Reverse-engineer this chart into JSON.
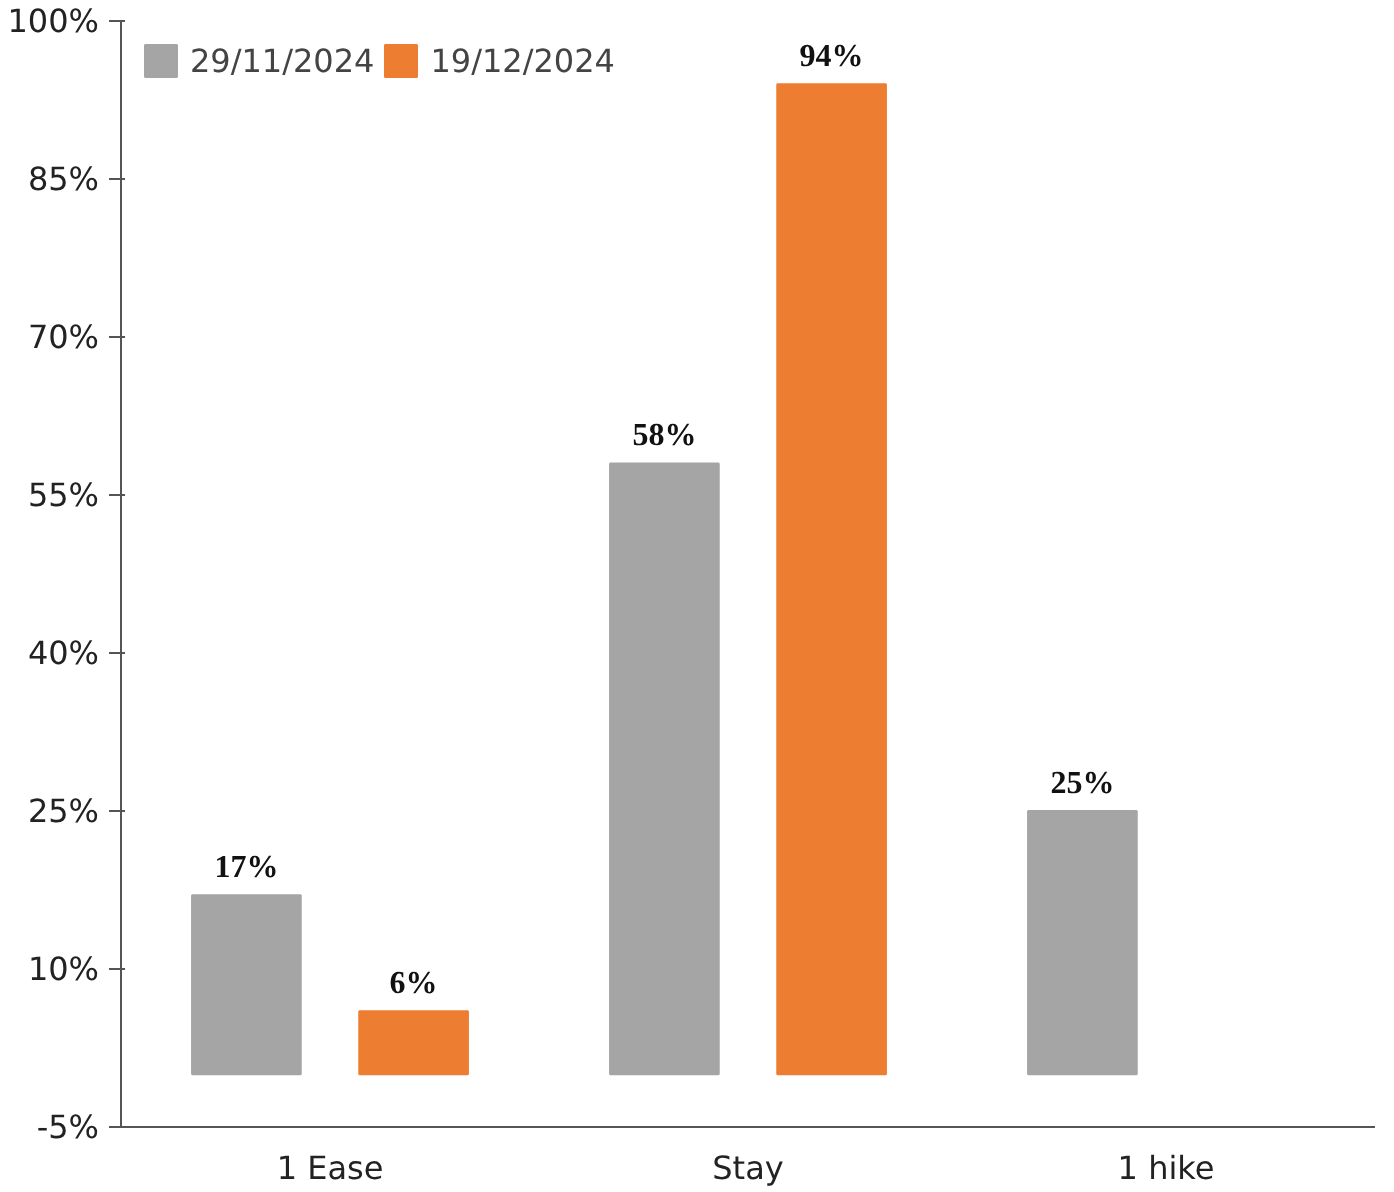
{
  "chart_data": {
    "type": "bar",
    "categories": [
      "1 Ease",
      "Stay",
      "1 hike"
    ],
    "series": [
      {
        "name": "29/11/2024",
        "color": "#a5a5a5",
        "values": [
          17,
          58,
          25
        ],
        "value_labels": [
          "17%",
          "58%",
          "25%"
        ]
      },
      {
        "name": "19/12/2024",
        "color": "#ed7d31",
        "values": [
          6,
          94,
          null
        ],
        "value_labels": [
          "6%",
          "94%",
          null
        ]
      }
    ],
    "ylim": [
      -5,
      100
    ],
    "yticks": [
      {
        "value": -5,
        "label": "-5%"
      },
      {
        "value": 10,
        "label": "10%"
      },
      {
        "value": 25,
        "label": "25%"
      },
      {
        "value": 40,
        "label": "40%"
      },
      {
        "value": 55,
        "label": "55%"
      },
      {
        "value": 70,
        "label": "70%"
      },
      {
        "value": 85,
        "label": "85%"
      },
      {
        "value": 100,
        "label": "100%"
      }
    ],
    "grid": false,
    "legend": "top left"
  }
}
